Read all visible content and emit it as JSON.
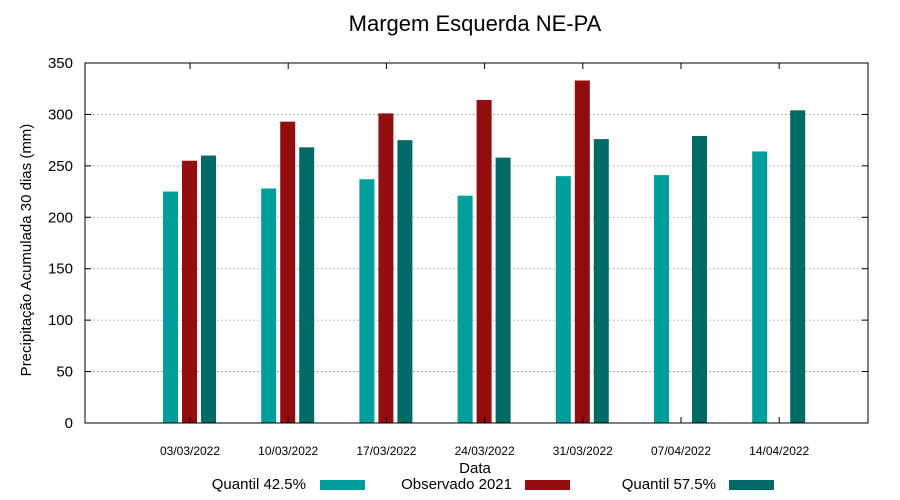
{
  "chart_data": {
    "type": "bar",
    "title": "Margem Esquerda NE-PA",
    "xlabel": "Data",
    "ylabel": "Precipitação Acumulada 30 dias (mm)",
    "ylim": [
      0,
      350
    ],
    "yticks": [
      0,
      50,
      100,
      150,
      200,
      250,
      300,
      350
    ],
    "grid": true,
    "legend_position": "bottom",
    "categories": [
      "03/03/2022",
      "10/03/2022",
      "17/03/2022",
      "24/03/2022",
      "31/03/2022",
      "07/04/2022",
      "14/04/2022"
    ],
    "series": [
      {
        "name": "Quantil 42.5%",
        "color": "#009e9b",
        "values": [
          225,
          228,
          237,
          221,
          240,
          241,
          264
        ]
      },
      {
        "name": "Observado 2021",
        "color": "#920d0d",
        "values": [
          255,
          293,
          301,
          314,
          333,
          null,
          null
        ]
      },
      {
        "name": "Quantil 57.5%",
        "color": "#006a66",
        "values": [
          260,
          268,
          275,
          258,
          276,
          279,
          304
        ]
      }
    ]
  }
}
